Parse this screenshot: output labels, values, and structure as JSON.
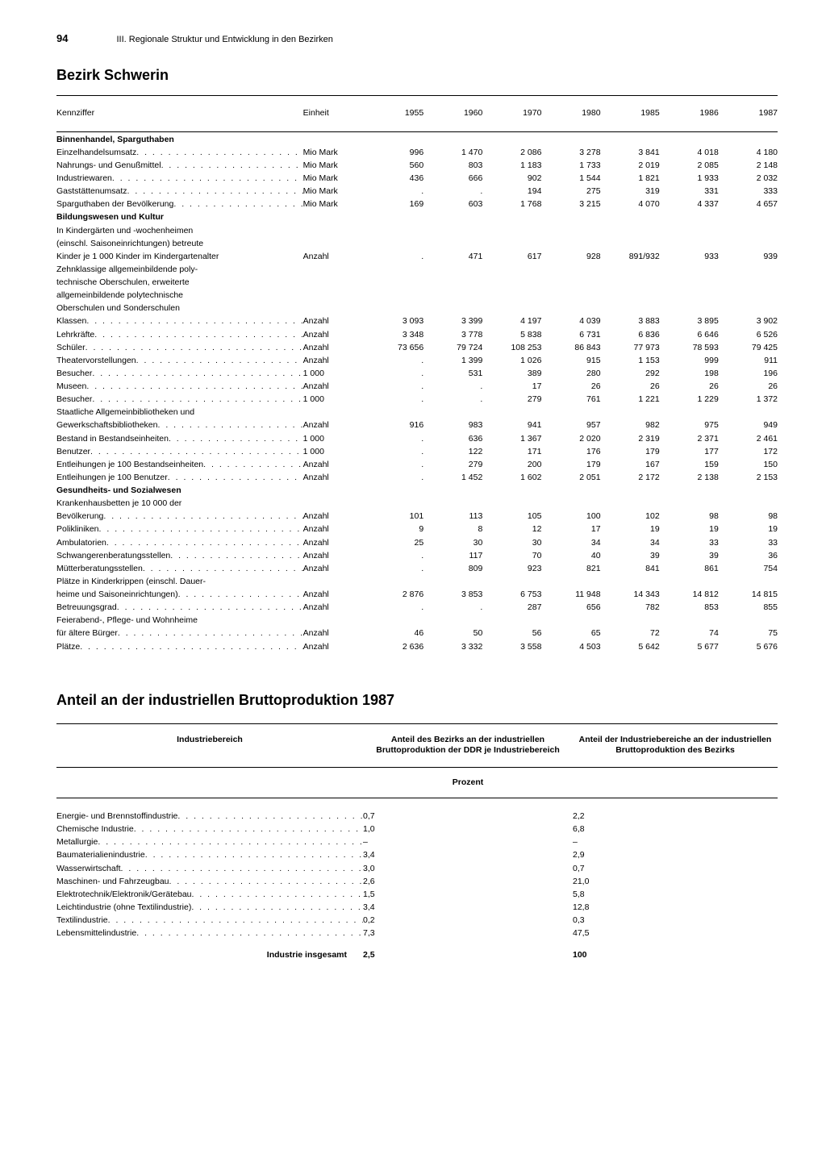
{
  "page_number": "94",
  "chapter": "III. Regionale Struktur und Entwicklung in den Bezirken",
  "region_title": "Bezirk Schwerin",
  "table1": {
    "col_label": "Kennziffer",
    "col_unit": "Einheit",
    "years": [
      "1955",
      "1960",
      "1970",
      "1980",
      "1985",
      "1986",
      "1987"
    ],
    "sections": [
      {
        "title": "Binnenhandel, Sparguthaben",
        "rows": [
          {
            "label": "Einzelhandelsumsatz",
            "unit": "Mio Mark",
            "indent": 0,
            "dots": true,
            "vals": [
              "996",
              "1 470",
              "2 086",
              "3 278",
              "3 841",
              "4 018",
              "4 180"
            ]
          },
          {
            "label": "Nahrungs- und Genußmittel",
            "unit": "Mio Mark",
            "indent": 1,
            "dots": true,
            "vals": [
              "560",
              "803",
              "1 183",
              "1 733",
              "2 019",
              "2 085",
              "2 148"
            ]
          },
          {
            "label": "Industriewaren",
            "unit": "Mio Mark",
            "indent": 1,
            "dots": true,
            "vals": [
              "436",
              "666",
              "902",
              "1 544",
              "1 821",
              "1 933",
              "2 032"
            ]
          },
          {
            "label": "Gaststättenumsatz",
            "unit": "Mio Mark",
            "indent": 0,
            "dots": true,
            "vals": [
              ".",
              ".",
              "194",
              "275",
              "319",
              "331",
              "333"
            ]
          },
          {
            "label": "Sparguthaben der Bevölkerung",
            "unit": "Mio Mark",
            "indent": 0,
            "dots": true,
            "vals": [
              "169",
              "603",
              "1 768",
              "3 215",
              "4 070",
              "4 337",
              "4 657"
            ]
          }
        ]
      },
      {
        "title": "Bildungswesen und Kultur",
        "rows": [
          {
            "label": "In Kindergärten und -wochenheimen",
            "unit": "",
            "indent": 0,
            "dots": false,
            "vals": [
              "",
              "",
              "",
              "",
              "",
              "",
              ""
            ]
          },
          {
            "label": "(einschl. Saisoneinrichtungen) betreute",
            "unit": "",
            "indent": 1,
            "dots": false,
            "vals": [
              "",
              "",
              "",
              "",
              "",
              "",
              ""
            ]
          },
          {
            "label": "Kinder je 1 000 Kinder im Kindergartenalter",
            "unit": "Anzahl",
            "indent": 1,
            "dots": false,
            "vals": [
              ".",
              "471",
              "617",
              "928",
              "891/932",
              "933",
              "939"
            ]
          },
          {
            "label": "Zehnklassige allgemeinbildende poly-",
            "unit": "",
            "indent": 0,
            "dots": false,
            "vals": [
              "",
              "",
              "",
              "",
              "",
              "",
              ""
            ]
          },
          {
            "label": "technische Oberschulen, erweiterte",
            "unit": "",
            "indent": 1,
            "dots": false,
            "vals": [
              "",
              "",
              "",
              "",
              "",
              "",
              ""
            ]
          },
          {
            "label": "allgemeinbildende polytechnische",
            "unit": "",
            "indent": 1,
            "dots": false,
            "vals": [
              "",
              "",
              "",
              "",
              "",
              "",
              ""
            ]
          },
          {
            "label": "Oberschulen und Sonderschulen",
            "unit": "",
            "indent": 1,
            "dots": false,
            "vals": [
              "",
              "",
              "",
              "",
              "",
              "",
              ""
            ]
          },
          {
            "label": "Klassen",
            "unit": "Anzahl",
            "indent": 2,
            "dots": true,
            "vals": [
              "3 093",
              "3 399",
              "4 197",
              "4 039",
              "3 883",
              "3 895",
              "3 902"
            ]
          },
          {
            "label": "Lehrkräfte",
            "unit": "Anzahl",
            "indent": 2,
            "dots": true,
            "vals": [
              "3 348",
              "3 778",
              "5 838",
              "6 731",
              "6 836",
              "6 646",
              "6 526"
            ]
          },
          {
            "label": "Schüler",
            "unit": "Anzahl",
            "indent": 2,
            "dots": true,
            "vals": [
              "73 656",
              "79 724",
              "108 253",
              "86 843",
              "77 973",
              "78 593",
              "79 425"
            ]
          },
          {
            "label": "Theatervorstellungen",
            "unit": "Anzahl",
            "indent": 0,
            "dots": true,
            "vals": [
              ".",
              "1 399",
              "1 026",
              "915",
              "1 153",
              "999",
              "911"
            ]
          },
          {
            "label": "Besucher",
            "unit": "1 000",
            "indent": 1,
            "dots": true,
            "vals": [
              ".",
              "531",
              "389",
              "280",
              "292",
              "198",
              "196"
            ]
          },
          {
            "label": "Museen",
            "unit": "Anzahl",
            "indent": 0,
            "dots": true,
            "vals": [
              ".",
              ".",
              "17",
              "26",
              "26",
              "26",
              "26"
            ]
          },
          {
            "label": "Besucher",
            "unit": "1 000",
            "indent": 1,
            "dots": true,
            "vals": [
              ".",
              ".",
              "279",
              "761",
              "1 221",
              "1 229",
              "1 372"
            ]
          },
          {
            "label": "Staatliche Allgemeinbibliotheken und",
            "unit": "",
            "indent": 0,
            "dots": false,
            "vals": [
              "",
              "",
              "",
              "",
              "",
              "",
              ""
            ]
          },
          {
            "label": "Gewerkschaftsbibliotheken",
            "unit": "Anzahl",
            "indent": 1,
            "dots": true,
            "vals": [
              "916",
              "983",
              "941",
              "957",
              "982",
              "975",
              "949"
            ]
          },
          {
            "label": "Bestand in Bestandseinheiten",
            "unit": "1 000",
            "indent": 2,
            "dots": true,
            "vals": [
              ".",
              "636",
              "1 367",
              "2 020",
              "2 319",
              "2 371",
              "2 461"
            ]
          },
          {
            "label": "Benutzer",
            "unit": "1 000",
            "indent": 2,
            "dots": true,
            "vals": [
              ".",
              "122",
              "171",
              "176",
              "179",
              "177",
              "172"
            ]
          },
          {
            "label": "Entleihungen je 100 Bestandseinheiten",
            "unit": "Anzahl",
            "indent": 2,
            "dots": true,
            "vals": [
              ".",
              "279",
              "200",
              "179",
              "167",
              "159",
              "150"
            ]
          },
          {
            "label": "Entleihungen je 100 Benutzer",
            "unit": "Anzahl",
            "indent": 2,
            "dots": true,
            "vals": [
              ".",
              "1 452",
              "1 602",
              "2 051",
              "2 172",
              "2 138",
              "2 153"
            ]
          }
        ]
      },
      {
        "title": "Gesundheits- und Sozialwesen",
        "rows": [
          {
            "label": "Krankenhausbetten je 10 000 der",
            "unit": "",
            "indent": 0,
            "dots": false,
            "vals": [
              "",
              "",
              "",
              "",
              "",
              "",
              ""
            ]
          },
          {
            "label": "Bevölkerung",
            "unit": "Anzahl",
            "indent": 1,
            "dots": true,
            "vals": [
              "101",
              "113",
              "105",
              "100",
              "102",
              "98",
              "98"
            ]
          },
          {
            "label": "Polikliniken",
            "unit": "Anzahl",
            "indent": 0,
            "dots": true,
            "vals": [
              "9",
              "8",
              "12",
              "17",
              "19",
              "19",
              "19"
            ]
          },
          {
            "label": "Ambulatorien",
            "unit": "Anzahl",
            "indent": 0,
            "dots": true,
            "vals": [
              "25",
              "30",
              "30",
              "34",
              "34",
              "33",
              "33"
            ]
          },
          {
            "label": "Schwangerenberatungsstellen",
            "unit": "Anzahl",
            "indent": 0,
            "dots": true,
            "vals": [
              ".",
              "117",
              "70",
              "40",
              "39",
              "39",
              "36"
            ]
          },
          {
            "label": "Mütterberatungsstellen",
            "unit": "Anzahl",
            "indent": 0,
            "dots": true,
            "vals": [
              ".",
              "809",
              "923",
              "821",
              "841",
              "861",
              "754"
            ]
          },
          {
            "label": "Plätze in Kinderkrippen (einschl. Dauer-",
            "unit": "",
            "indent": 0,
            "dots": false,
            "vals": [
              "",
              "",
              "",
              "",
              "",
              "",
              ""
            ]
          },
          {
            "label": "heime und Saisoneinrichtungen)",
            "unit": "Anzahl",
            "indent": 1,
            "dots": true,
            "vals": [
              "2 876",
              "3 853",
              "6 753",
              "11 948",
              "14 343",
              "14 812",
              "14 815"
            ]
          },
          {
            "label": "Betreuungsgrad",
            "unit": "Anzahl",
            "indent": 1,
            "dots": true,
            "vals": [
              ".",
              ".",
              "287",
              "656",
              "782",
              "853",
              "855"
            ]
          },
          {
            "label": "Feierabend-, Pflege- und Wohnheime",
            "unit": "",
            "indent": 0,
            "dots": false,
            "vals": [
              "",
              "",
              "",
              "",
              "",
              "",
              ""
            ]
          },
          {
            "label": "für ältere Bürger",
            "unit": "Anzahl",
            "indent": 1,
            "dots": true,
            "vals": [
              "46",
              "50",
              "56",
              "65",
              "72",
              "74",
              "75"
            ]
          },
          {
            "label": "Plätze",
            "unit": "Anzahl",
            "indent": 2,
            "dots": true,
            "vals": [
              "2 636",
              "3 332",
              "3 558",
              "4 503",
              "5 642",
              "5 677",
              "5 676"
            ]
          }
        ]
      }
    ]
  },
  "table2_title": "Anteil an der industriellen Bruttoproduktion 1987",
  "table2": {
    "col1": "Industriebereich",
    "col2": "Anteil des Bezirks an der industriellen Bruttoproduktion der DDR je Industriebereich",
    "col3": "Anteil der Industriebereiche an der industriellen Bruttoproduktion des Bezirks",
    "unit_label": "Prozent",
    "rows": [
      {
        "label": "Energie- und Brennstoffindustrie",
        "a": "0,7",
        "b": "2,2"
      },
      {
        "label": "Chemische Industrie",
        "a": "1,0",
        "b": "6,8"
      },
      {
        "label": "Metallurgie",
        "a": "–",
        "b": "–"
      },
      {
        "label": "Baumaterialienindustrie",
        "a": "3,4",
        "b": "2,9"
      },
      {
        "label": "Wasserwirtschaft",
        "a": "3,0",
        "b": "0,7"
      },
      {
        "label": "Maschinen- und Fahrzeugbau",
        "a": "2,6",
        "b": "21,0"
      },
      {
        "label": "Elektrotechnik/Elektronik/Gerätebau",
        "a": "1,5",
        "b": "5,8"
      },
      {
        "label": "Leichtindustrie (ohne Textilindustrie)",
        "a": "3,4",
        "b": "12,8"
      },
      {
        "label": "Textilindustrie",
        "a": "0,2",
        "b": "0,3"
      },
      {
        "label": "Lebensmittelindustrie",
        "a": "7,3",
        "b": "47,5"
      }
    ],
    "total_label": "Industrie insgesamt",
    "total_a": "2,5",
    "total_b": "100"
  }
}
